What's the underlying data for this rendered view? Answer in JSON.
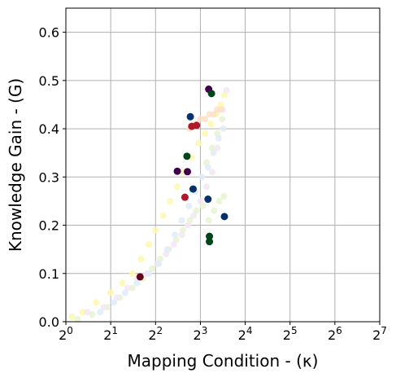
{
  "chart_data": {
    "type": "scatter",
    "xlabel": "Mapping Condition - (κ)",
    "ylabel": "Knowledge Gain - (G)",
    "x_scale": "log2",
    "xlim": [
      1,
      128
    ],
    "ylim": [
      0,
      0.65
    ],
    "grid": true,
    "x_ticks": [
      {
        "value": 1,
        "base": "2",
        "exp": "0"
      },
      {
        "value": 2,
        "base": "2",
        "exp": "1"
      },
      {
        "value": 4,
        "base": "2",
        "exp": "2"
      },
      {
        "value": 8,
        "base": "2",
        "exp": "3"
      },
      {
        "value": 16,
        "base": "2",
        "exp": "4"
      },
      {
        "value": 32,
        "base": "2",
        "exp": "5"
      },
      {
        "value": 64,
        "base": "2",
        "exp": "6"
      },
      {
        "value": 128,
        "base": "2",
        "exp": "7"
      }
    ],
    "y_ticks": [
      {
        "value": 0.0,
        "label": "0.0"
      },
      {
        "value": 0.1,
        "label": "0.1"
      },
      {
        "value": 0.2,
        "label": "0.2"
      },
      {
        "value": 0.3,
        "label": "0.3"
      },
      {
        "value": 0.4,
        "label": "0.4"
      },
      {
        "value": 0.5,
        "label": "0.5"
      },
      {
        "value": 0.6,
        "label": "0.6"
      }
    ],
    "faint_clouds": [
      {
        "color": "#fff7b0",
        "points": [
          [
            1.1,
            0.01
          ],
          [
            1.3,
            0.02
          ],
          [
            1.6,
            0.04
          ],
          [
            2.0,
            0.06
          ],
          [
            2.4,
            0.08
          ],
          [
            2.8,
            0.1
          ],
          [
            3.2,
            0.13
          ],
          [
            3.6,
            0.16
          ],
          [
            4.0,
            0.19
          ],
          [
            4.5,
            0.22
          ],
          [
            5.0,
            0.25
          ],
          [
            5.6,
            0.28
          ],
          [
            6.2,
            0.31
          ],
          [
            7.0,
            0.34
          ],
          [
            7.8,
            0.37
          ],
          [
            8.6,
            0.39
          ],
          [
            9.4,
            0.41
          ],
          [
            10.2,
            0.43
          ],
          [
            11.0,
            0.45
          ],
          [
            11.6,
            0.47
          ]
        ]
      },
      {
        "color": "#e6f5d0",
        "points": [
          [
            1.2,
            0.005
          ],
          [
            1.5,
            0.015
          ],
          [
            1.9,
            0.03
          ],
          [
            2.3,
            0.05
          ],
          [
            2.8,
            0.07
          ],
          [
            3.3,
            0.09
          ],
          [
            3.8,
            0.11
          ],
          [
            4.3,
            0.13
          ],
          [
            4.9,
            0.15
          ],
          [
            5.5,
            0.17
          ],
          [
            6.1,
            0.19
          ],
          [
            6.8,
            0.21
          ],
          [
            7.5,
            0.23
          ],
          [
            8.3,
            0.24
          ],
          [
            9.1,
            0.21
          ],
          [
            9.9,
            0.23
          ],
          [
            10.7,
            0.25
          ],
          [
            11.5,
            0.26
          ],
          [
            8.8,
            0.33
          ],
          [
            9.6,
            0.36
          ],
          [
            10.4,
            0.39
          ],
          [
            11.2,
            0.42
          ]
        ]
      },
      {
        "color": "#f2e8f5",
        "points": [
          [
            1.4,
            0.02
          ],
          [
            1.8,
            0.03
          ],
          [
            2.2,
            0.05
          ],
          [
            2.6,
            0.07
          ],
          [
            3.0,
            0.09
          ],
          [
            3.5,
            0.1
          ],
          [
            4.1,
            0.12
          ],
          [
            4.7,
            0.14
          ],
          [
            5.3,
            0.16
          ],
          [
            6.0,
            0.18
          ],
          [
            6.6,
            0.2
          ],
          [
            7.2,
            0.22
          ],
          [
            8.0,
            0.25
          ],
          [
            8.8,
            0.28
          ],
          [
            9.6,
            0.31
          ],
          [
            10.4,
            0.36
          ],
          [
            11.3,
            0.44
          ],
          [
            12.0,
            0.48
          ]
        ]
      },
      {
        "color": "#e0ecf8",
        "points": [
          [
            1.7,
            0.02
          ],
          [
            2.1,
            0.04
          ],
          [
            2.5,
            0.06
          ],
          [
            3.0,
            0.08
          ],
          [
            3.6,
            0.1
          ],
          [
            4.2,
            0.12
          ],
          [
            4.8,
            0.15
          ],
          [
            5.4,
            0.18
          ],
          [
            6.0,
            0.21
          ],
          [
            6.7,
            0.24
          ],
          [
            7.4,
            0.27
          ],
          [
            8.2,
            0.3
          ],
          [
            9.0,
            0.32
          ],
          [
            9.8,
            0.35
          ],
          [
            10.6,
            0.38
          ],
          [
            11.4,
            0.4
          ]
        ]
      },
      {
        "color": "#fde0c5",
        "points": [
          [
            6.8,
            0.4
          ],
          [
            7.4,
            0.41
          ],
          [
            8.0,
            0.42
          ],
          [
            8.6,
            0.42
          ],
          [
            9.2,
            0.43
          ],
          [
            9.8,
            0.43
          ],
          [
            10.4,
            0.44
          ],
          [
            11.0,
            0.44
          ]
        ]
      }
    ],
    "series": [
      {
        "color": "#67001f",
        "points": [
          [
            3.15,
            0.093
          ]
        ]
      },
      {
        "color": "#b2182b",
        "points": [
          [
            7.0,
            0.405
          ],
          [
            7.55,
            0.407
          ],
          [
            6.3,
            0.258
          ]
        ]
      },
      {
        "color": "#40004b",
        "points": [
          [
            5.6,
            0.312
          ],
          [
            6.55,
            0.311
          ],
          [
            9.1,
            0.482
          ]
        ]
      },
      {
        "color": "#08306b",
        "points": [
          [
            6.85,
            0.425
          ],
          [
            7.15,
            0.275
          ],
          [
            9.0,
            0.254
          ],
          [
            11.6,
            0.218
          ]
        ]
      },
      {
        "color": "#00441b",
        "points": [
          [
            6.5,
            0.343
          ],
          [
            9.5,
            0.473
          ],
          [
            9.2,
            0.177
          ],
          [
            9.2,
            0.166
          ]
        ]
      }
    ]
  }
}
